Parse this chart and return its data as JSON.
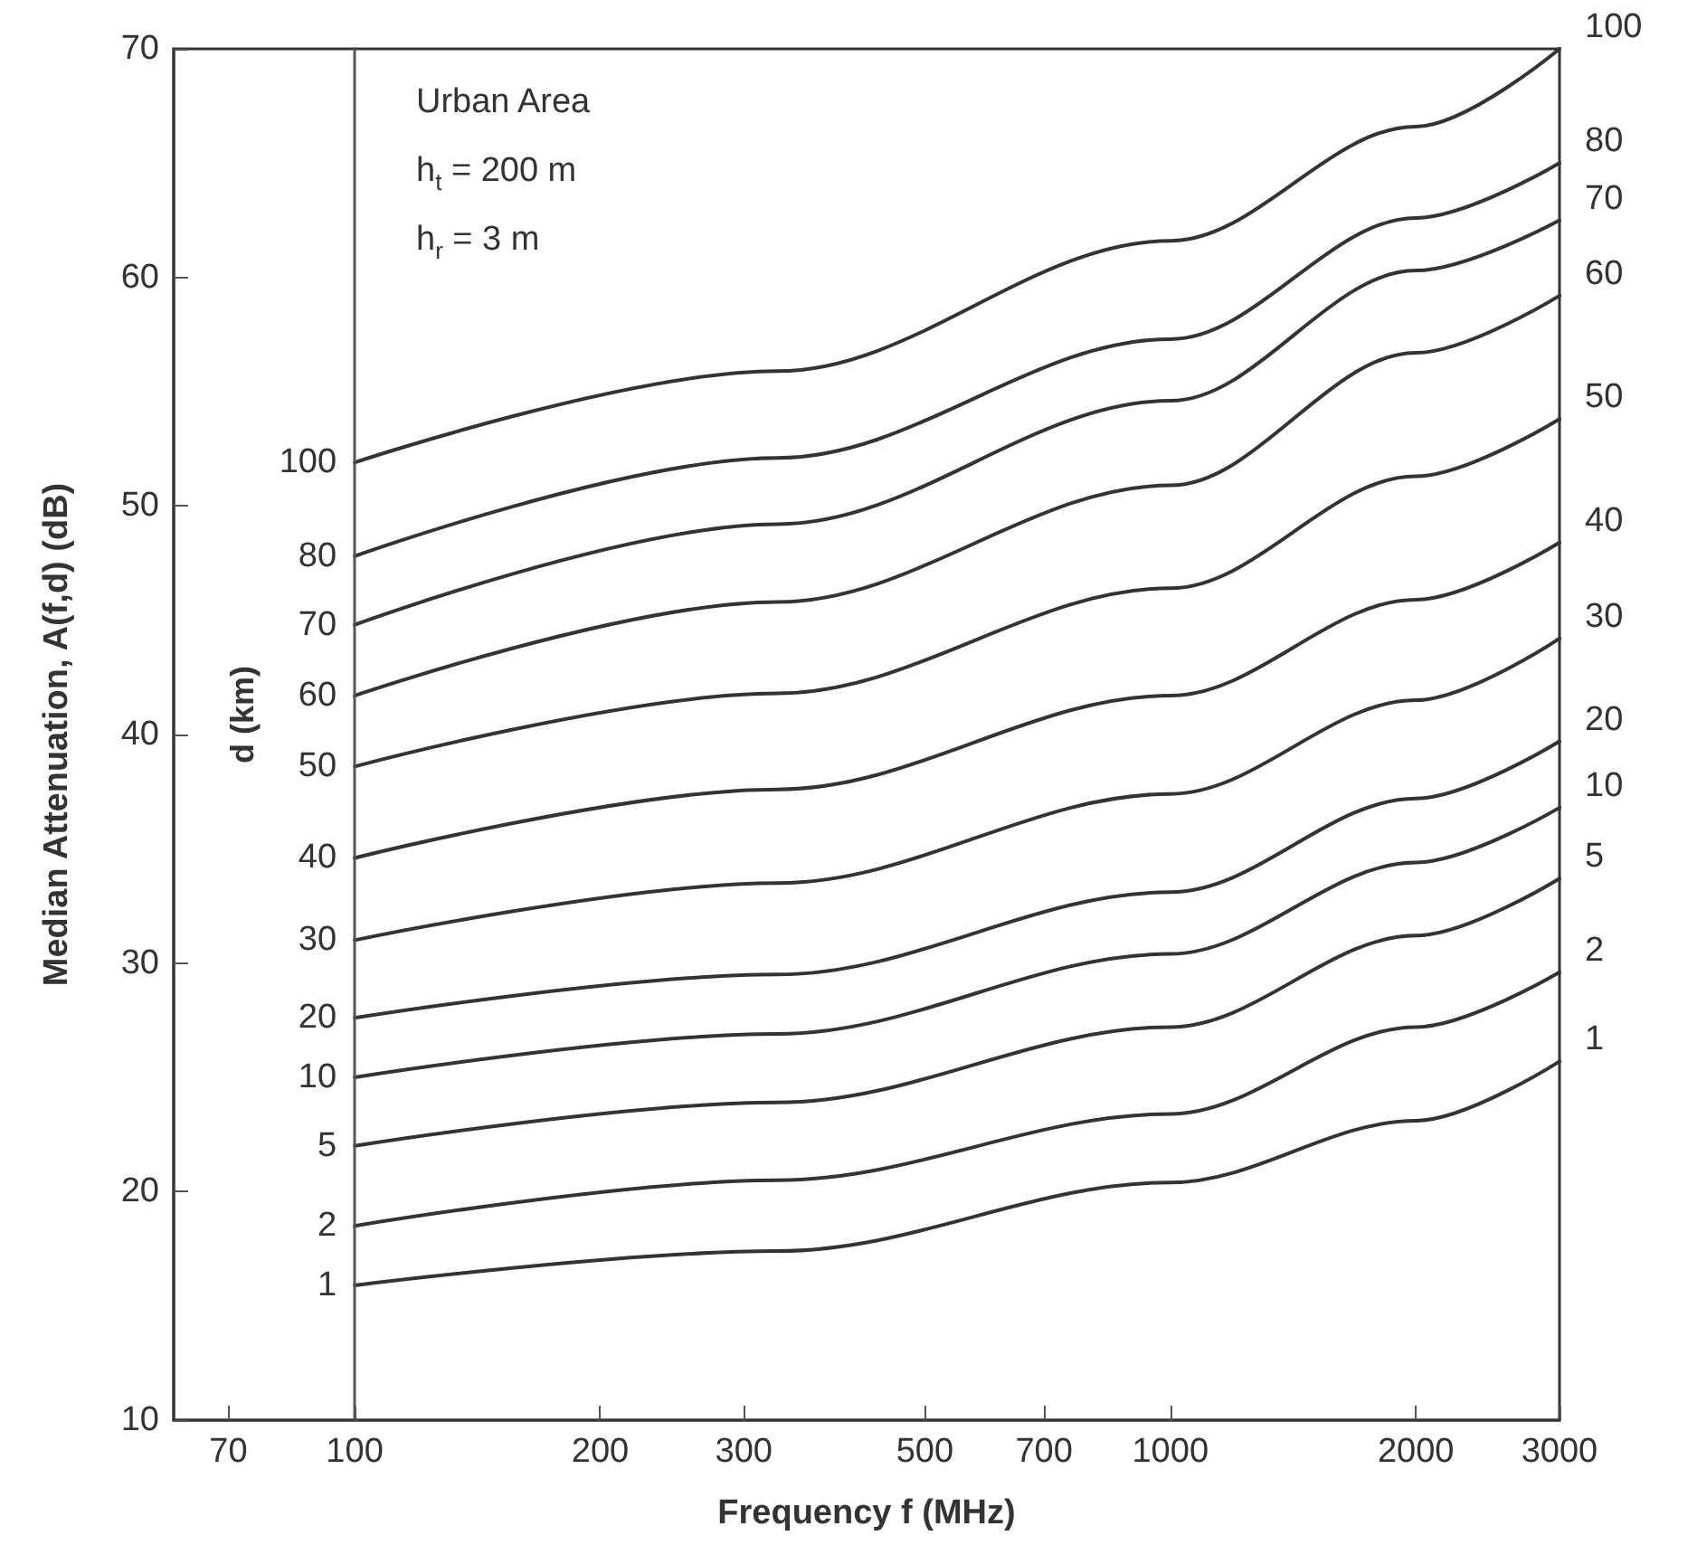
{
  "chart_data": {
    "type": "line",
    "xlabel": "Frequency f (MHz)",
    "ylabel": "Median Attenuation, A(f,d) (dB)",
    "legend_title": "d (km)",
    "annotations": [
      "Urban Area",
      "h$_{t}$ = 200 m",
      "h$_{r}$ = 3 m"
    ],
    "x": [
      100,
      330,
      1000,
      2000,
      3000
    ],
    "series": [
      {
        "name": "100",
        "color": "#333333",
        "values": [
          51.9,
          55.9,
          61.6,
          66.6,
          70
        ]
      },
      {
        "name": "80",
        "color": "#333333",
        "values": [
          47.8,
          52.1,
          57.3,
          62.6,
          65.0
        ]
      },
      {
        "name": "70",
        "color": "#333333",
        "values": [
          44.8,
          49.2,
          54.6,
          60.3,
          62.5
        ]
      },
      {
        "name": "60",
        "color": "#333333",
        "values": [
          41.7,
          45.8,
          50.9,
          56.7,
          59.2
        ]
      },
      {
        "name": "50",
        "color": "#333333",
        "values": [
          38.6,
          41.8,
          46.4,
          51.3,
          53.8
        ]
      },
      {
        "name": "40",
        "color": "#333333",
        "values": [
          34.6,
          37.6,
          41.7,
          45.9,
          48.4
        ]
      },
      {
        "name": "30",
        "color": "#333333",
        "values": [
          31.0,
          33.5,
          37.4,
          41.5,
          44.2
        ]
      },
      {
        "name": "20",
        "color": "#333333",
        "values": [
          27.6,
          29.5,
          33.1,
          37.2,
          39.7
        ]
      },
      {
        "name": "10",
        "color": "#333333",
        "values": [
          25.0,
          26.9,
          30.4,
          34.4,
          36.8
        ]
      },
      {
        "name": "5",
        "color": "#333333",
        "values": [
          22.0,
          23.9,
          27.2,
          31.2,
          33.7
        ]
      },
      {
        "name": "2",
        "color": "#333333",
        "values": [
          18.5,
          20.5,
          23.4,
          27.2,
          29.6
        ]
      },
      {
        "name": "1",
        "color": "#333333",
        "values": [
          15.9,
          17.4,
          20.4,
          23.1,
          25.7
        ]
      }
    ],
    "log": "x",
    "xlim": [
      60,
      3000
    ],
    "xticks": [
      70,
      100,
      200,
      300,
      500,
      700,
      1000,
      2000,
      3000
    ],
    "ylim": [
      10,
      70
    ],
    "yticks": [
      10,
      20,
      30,
      40,
      50,
      60,
      70
    ],
    "ref_lines": [
      {
        "axis": "x",
        "value": 100,
        "color": "#555555"
      }
    ],
    "grid": false,
    "legend": false,
    "marker": "none",
    "line_style": "solid"
  }
}
